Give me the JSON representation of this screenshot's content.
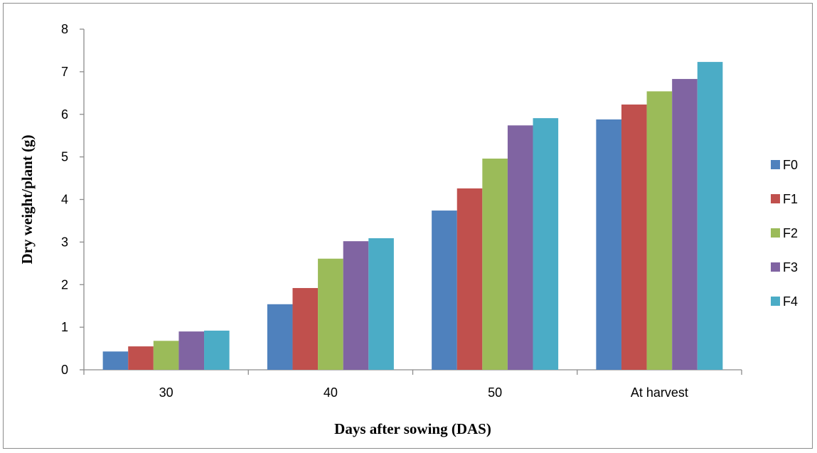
{
  "chart_data": {
    "type": "bar",
    "title": "",
    "xlabel": "Days after sowing (DAS)",
    "ylabel": "Dry weight/plant (g)",
    "categories": [
      "30",
      "40",
      "50",
      "At harvest"
    ],
    "ylim": [
      0,
      8
    ],
    "yticks": [
      "0",
      "1",
      "2",
      "3",
      "4",
      "5",
      "6",
      "7",
      "8"
    ],
    "grid": false,
    "legend_position": "right",
    "series": [
      {
        "name": "F0",
        "color": "#4F81BD",
        "values": [
          0.43,
          1.54,
          3.74,
          5.88
        ]
      },
      {
        "name": "F1",
        "color": "#C0504D",
        "values": [
          0.55,
          1.92,
          4.26,
          6.23
        ]
      },
      {
        "name": "F2",
        "color": "#9BBB59",
        "values": [
          0.68,
          2.61,
          4.96,
          6.54
        ]
      },
      {
        "name": "F3",
        "color": "#8064A2",
        "values": [
          0.9,
          3.02,
          5.74,
          6.83
        ]
      },
      {
        "name": "F4",
        "color": "#4BACC6",
        "values": [
          0.92,
          3.09,
          5.91,
          7.23
        ]
      }
    ]
  }
}
